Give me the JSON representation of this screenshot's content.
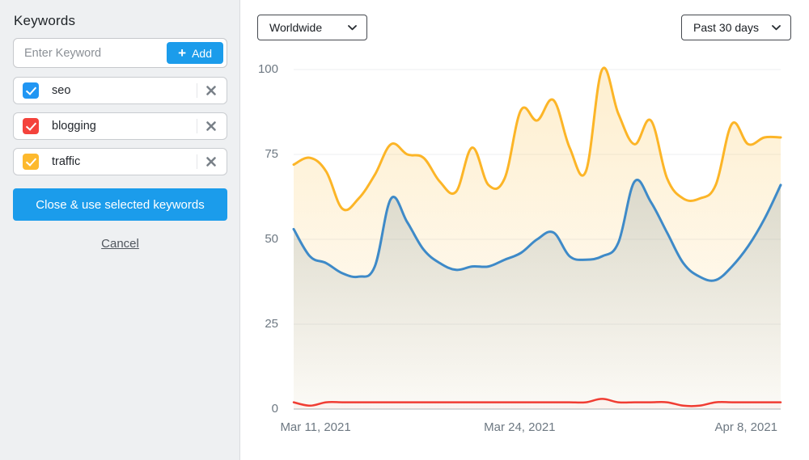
{
  "sidebar": {
    "title": "Keywords",
    "input": {
      "placeholder": "Enter Keyword",
      "add_label": "Add",
      "add_icon": "plus-icon"
    },
    "keywords": [
      {
        "label": "seo",
        "checked": true,
        "color": "#2196f3"
      },
      {
        "label": "blogging",
        "checked": true,
        "color": "#f4433c"
      },
      {
        "label": "traffic",
        "checked": true,
        "color": "#fdb92d"
      }
    ],
    "close_button": "Close & use selected keywords",
    "cancel_link": "Cancel"
  },
  "toolbar": {
    "region_select": {
      "value": "Worldwide"
    },
    "range_select": {
      "value": "Past 30 days"
    }
  },
  "colors": {
    "accent_blue": "#1b9ceb",
    "axis_text": "#6d7882",
    "grid_line": "#edeff1",
    "baseline": "#c8cdd1"
  },
  "chart_data": {
    "type": "area",
    "title": "",
    "xlabel": "",
    "ylabel": "",
    "ylim": [
      0,
      100
    ],
    "yticks": [
      0,
      25,
      50,
      75,
      100
    ],
    "grid": "horizontal",
    "legend": "none",
    "x": [
      "Mar 10, 2021",
      "Mar 11, 2021",
      "Mar 12, 2021",
      "Mar 13, 2021",
      "Mar 14, 2021",
      "Mar 15, 2021",
      "Mar 16, 2021",
      "Mar 17, 2021",
      "Mar 18, 2021",
      "Mar 19, 2021",
      "Mar 20, 2021",
      "Mar 21, 2021",
      "Mar 22, 2021",
      "Mar 23, 2021",
      "Mar 24, 2021",
      "Mar 25, 2021",
      "Mar 26, 2021",
      "Mar 27, 2021",
      "Mar 28, 2021",
      "Mar 29, 2021",
      "Mar 30, 2021",
      "Mar 31, 2021",
      "Apr 1, 2021",
      "Apr 2, 2021",
      "Apr 3, 2021",
      "Apr 4, 2021",
      "Apr 5, 2021",
      "Apr 6, 2021",
      "Apr 7, 2021",
      "Apr 8, 2021",
      "Apr 9, 2021"
    ],
    "xtick_labels": [
      {
        "label": "Mar 11, 2021",
        "pos": 0.045
      },
      {
        "label": "Mar 24, 2021",
        "pos": 0.464
      },
      {
        "label": "Apr 8, 2021",
        "pos": 0.929
      }
    ],
    "series": [
      {
        "name": "traffic",
        "color": "#fcb527",
        "stroke_width": 3,
        "fill_top": "rgba(252,181,39,0.22)",
        "fill_bottom": "rgba(252,181,39,0.03)",
        "values": [
          72,
          74,
          70,
          59,
          62,
          69,
          78,
          75,
          74,
          67,
          64,
          77,
          66,
          68,
          88,
          85,
          91,
          77,
          70,
          100,
          87,
          78,
          85,
          68,
          62,
          62,
          66,
          84,
          78,
          80,
          80
        ]
      },
      {
        "name": "seo",
        "color": "#3e8ac8",
        "stroke_width": 3,
        "fill_top": "rgba(96,125,139,0.32)",
        "fill_bottom": "rgba(96,125,139,0.02)",
        "values": [
          53,
          45,
          43,
          40,
          39,
          42,
          62,
          55,
          47,
          43,
          41,
          42,
          42,
          44,
          46,
          50,
          52,
          45,
          44,
          45,
          49,
          67,
          61,
          52,
          43,
          39,
          38,
          42,
          48,
          56,
          66
        ]
      },
      {
        "name": "blogging",
        "color": "#f03d33",
        "stroke_width": 2.5,
        "fill_top": "rgba(240,61,51,0.16)",
        "fill_bottom": "rgba(240,61,51,0.03)",
        "values": [
          2,
          1,
          2,
          2,
          2,
          2,
          2,
          2,
          2,
          2,
          2,
          2,
          2,
          2,
          2,
          2,
          2,
          2,
          2,
          3,
          2,
          2,
          2,
          2,
          1,
          1,
          2,
          2,
          2,
          2,
          2
        ]
      }
    ]
  }
}
